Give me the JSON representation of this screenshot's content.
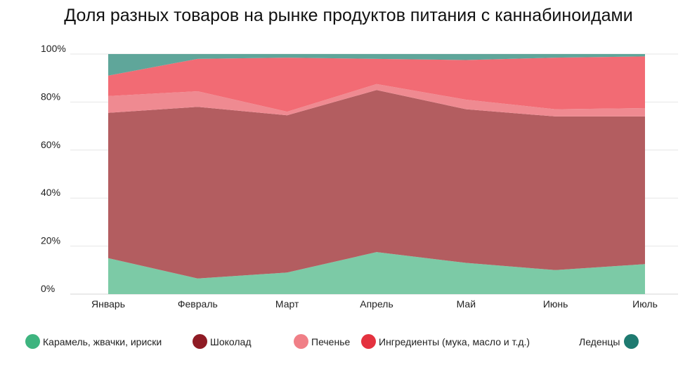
{
  "title": "Доля разных товаров на рынке продуктов питания с каннабиноидами",
  "chart_data": {
    "type": "area",
    "stacked": true,
    "title": "Доля разных товаров на рынке продуктов питания с каннабиноидами",
    "xlabel": "",
    "ylabel": "",
    "ylim": [
      0,
      100
    ],
    "y_ticks": [
      "0%",
      "20%",
      "40%",
      "60%",
      "80%",
      "100%"
    ],
    "categories": [
      "Январь",
      "Февраль",
      "Март",
      "Апрель",
      "Май",
      "Июнь",
      "Июль"
    ],
    "grid": true,
    "legend_position": "bottom",
    "series": [
      {
        "name": "Карамель, жвачки, ириски",
        "color": "#7ccaa6",
        "values": [
          15,
          6.5,
          9,
          17.5,
          13,
          10,
          12.5
        ]
      },
      {
        "name": "Шоколад",
        "color": "#b35d60",
        "values": [
          60.5,
          71.5,
          65.5,
          67.5,
          64,
          64,
          61.5
        ]
      },
      {
        "name": "Печенье",
        "color": "#ef8a91",
        "values": [
          7,
          6.5,
          1.5,
          2.5,
          4,
          3,
          3.5
        ]
      },
      {
        "name": "Ингредиенты (мука, масло и т.д.)",
        "color": "#f26b74",
        "values": [
          8.5,
          13.5,
          22.5,
          10.5,
          16.5,
          21.5,
          21.5
        ]
      },
      {
        "name": "Леденцы",
        "color": "#5fa69a",
        "values": [
          9,
          2,
          1.5,
          2,
          2.5,
          1.5,
          1
        ]
      }
    ]
  },
  "legend": [
    {
      "label": "Карамель, жвачки, ириски",
      "color": "#3eb47f",
      "dot_side": "left"
    },
    {
      "label": "Шоколад",
      "color": "#8f1b24",
      "dot_side": "left"
    },
    {
      "label": "Печенье",
      "color": "#f07f87",
      "dot_side": "left"
    },
    {
      "label": "Ингредиенты (мука, масло и т.д.)",
      "color": "#e4323f",
      "dot_side": "left"
    },
    {
      "label": "Леденцы",
      "color": "#1e7a70",
      "dot_side": "right"
    }
  ]
}
